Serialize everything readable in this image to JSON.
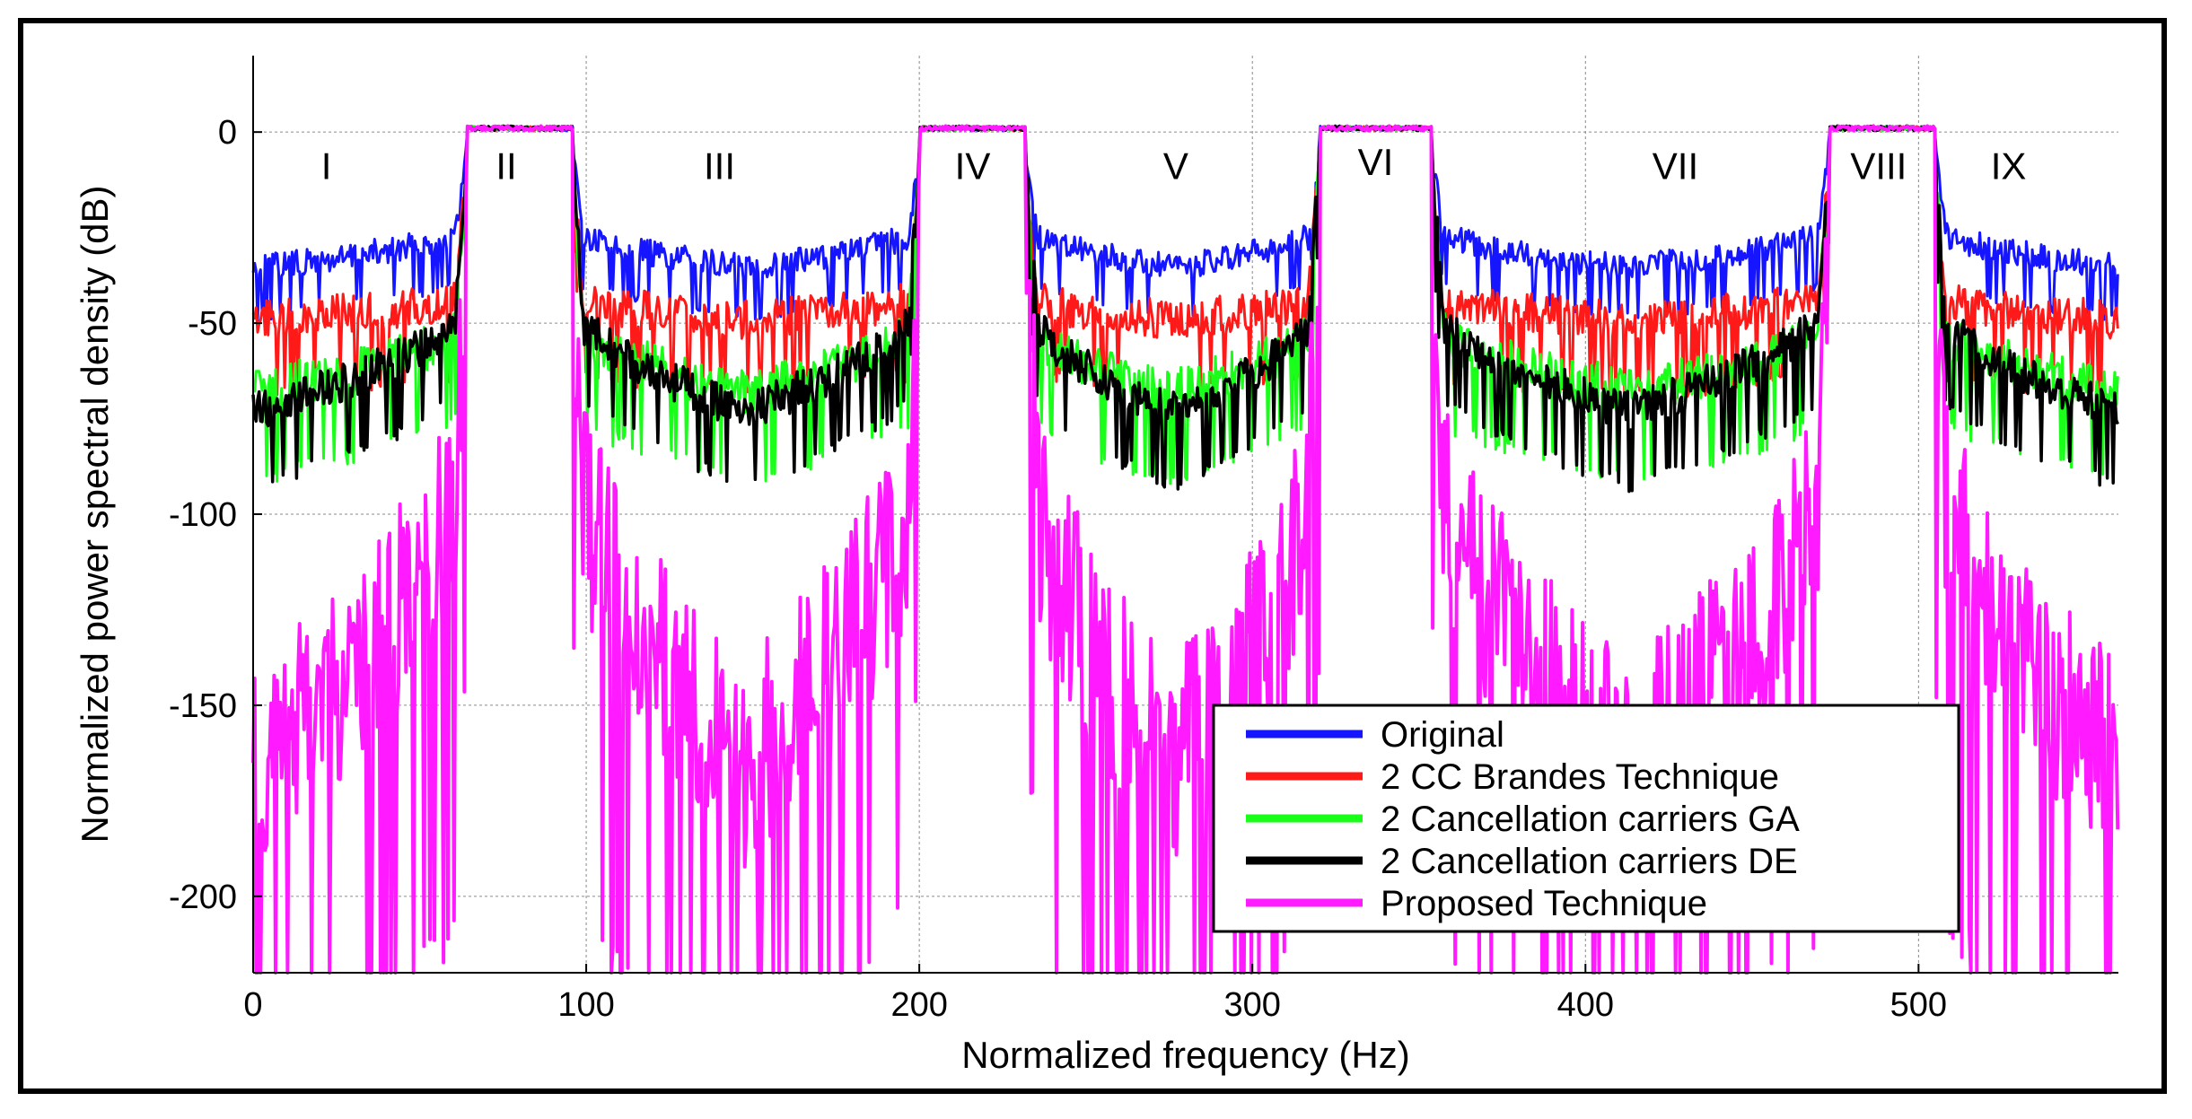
{
  "chart_data": {
    "type": "line",
    "title": "",
    "xlabel": "Normalized frequency (Hz)",
    "ylabel": "Normalized power spectral density (dB)",
    "xlim": [
      0,
      560
    ],
    "ylim": [
      -220,
      20
    ],
    "xticks": [
      0,
      100,
      200,
      300,
      400,
      500
    ],
    "yticks": [
      0,
      -50,
      -100,
      -150,
      -200
    ],
    "xtick_labels": [
      "0",
      "100",
      "200",
      "300",
      "400",
      "500"
    ],
    "ytick_labels": [
      "0",
      "-50",
      "-100",
      "-150",
      "-200"
    ],
    "grid": true,
    "bands": [
      {
        "start": 64,
        "end": 96
      },
      {
        "start": 200,
        "end": 232
      },
      {
        "start": 320,
        "end": 354
      },
      {
        "start": 473,
        "end": 505
      }
    ],
    "region_labels": [
      {
        "label": "I",
        "x": 22,
        "y": -9
      },
      {
        "label": "II",
        "x": 76,
        "y": -9
      },
      {
        "label": "III",
        "x": 140,
        "y": -9
      },
      {
        "label": "IV",
        "x": 216,
        "y": -9
      },
      {
        "label": "V",
        "x": 277,
        "y": -9
      },
      {
        "label": "VI",
        "x": 337,
        "y": -8
      },
      {
        "label": "VII",
        "x": 427,
        "y": -9
      },
      {
        "label": "VIII",
        "x": 488,
        "y": -9
      },
      {
        "label": "IX",
        "x": 527,
        "y": -9
      }
    ],
    "series": [
      {
        "name": "Original",
        "color": "#1515ff",
        "edge_db": -22,
        "trough_db": -32,
        "spread": 8
      },
      {
        "name": "2 CC Brandes Technique",
        "color": "#ff1a1a",
        "edge_db": -38,
        "trough_db": -44,
        "spread": 12
      },
      {
        "name": "2 Cancellation carriers GA",
        "color": "#19ff19",
        "edge_db": -44,
        "trough_db": -62,
        "spread": 14
      },
      {
        "name": "2 Cancellation carriers DE",
        "color": "#000000",
        "edge_db": -40,
        "trough_db": -68,
        "spread": 12
      },
      {
        "name": "Proposed Technique",
        "color": "#ff1aff",
        "edge_db": -55,
        "trough_db": -138,
        "spread": 65
      }
    ],
    "legend": {
      "position": "bottom-right",
      "entries": [
        "Original",
        "2 CC Brandes Technique",
        "2 Cancellation carriers GA",
        "2 Cancellation carriers DE",
        "Proposed Technique"
      ]
    }
  }
}
